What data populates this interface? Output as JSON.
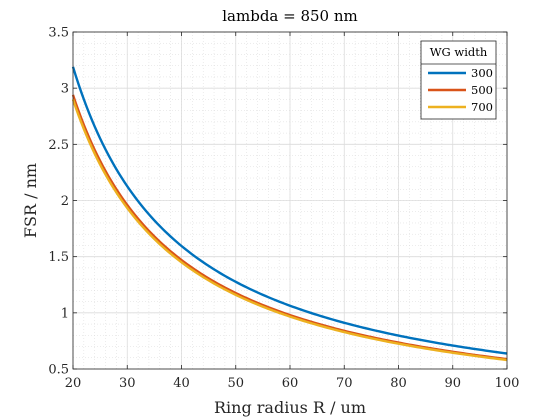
{
  "chart_data": {
    "type": "line",
    "title": "lambda = 850 nm",
    "xlabel": "Ring radius R / um",
    "ylabel": "FSR / nm",
    "xlim": [
      20,
      100
    ],
    "ylim": [
      0.5,
      3.5
    ],
    "xticks": [
      "20",
      "30",
      "40",
      "50",
      "60",
      "70",
      "80",
      "90",
      "100"
    ],
    "yticks": [
      "0.5",
      "1",
      "1.5",
      "2",
      "2.5",
      "3",
      "3.5"
    ],
    "grid": true,
    "minor_grid": true,
    "legend": {
      "title": "WG width",
      "placement": "top-right"
    },
    "series": [
      {
        "name": "300",
        "color": "#0072BD",
        "A": 63.8
      },
      {
        "name": "500",
        "color": "#D95319",
        "A": 58.8
      },
      {
        "name": "700",
        "color": "#EDB120",
        "A": 58.0
      }
    ]
  }
}
